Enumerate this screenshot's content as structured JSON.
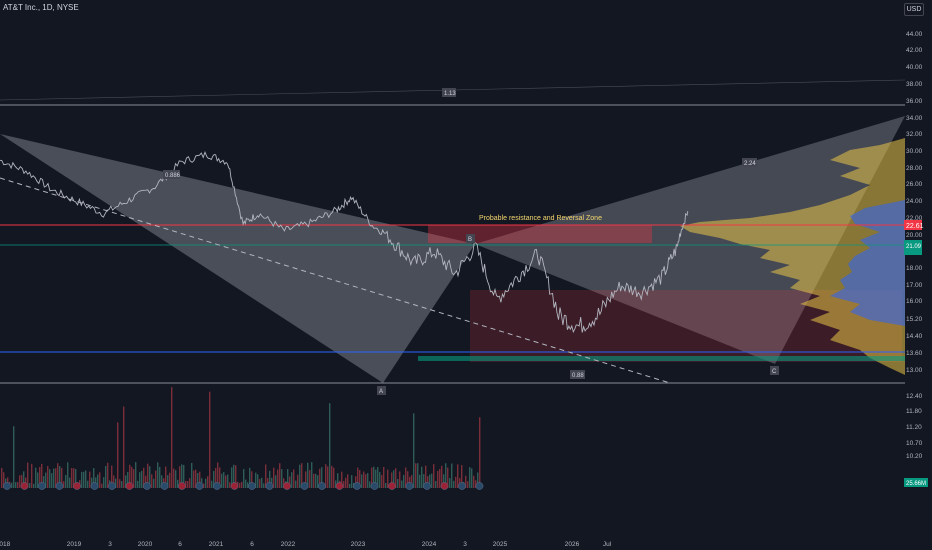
{
  "header": {
    "title": "AT&T Inc., 1D, NYSE",
    "currency": "USD"
  },
  "colors": {
    "background": "#131722",
    "price_line": "#b2b5be",
    "volume_down": "#7a2e3a",
    "volume_up": "#2e5d58",
    "pattern_fill": "#b2b5be",
    "resistance_zone": "#f23645",
    "resistance_line": "#f23645",
    "support_line": "#2962ff",
    "highlight_green": "#089981",
    "annotation_text": "#f5d76e"
  },
  "price_axis": {
    "ticks": [
      "44.00",
      "42.00",
      "40.00",
      "38.00",
      "36.00",
      "34.00",
      "32.00",
      "30.00",
      "28.00",
      "26.00",
      "24.00",
      "22.00",
      "20.00",
      "19.00",
      "18.00",
      "17.00",
      "16.00",
      "15.20",
      "14.40",
      "13.60",
      "13.00",
      "12.40",
      "11.80",
      "11.20",
      "10.70",
      "10.20"
    ],
    "current_price_label": "22.61",
    "green_label": "21.09",
    "volume_label": "25.66M"
  },
  "time_axis": {
    "ticks": [
      "2018",
      "2019",
      "3",
      "2020",
      "6",
      "2021",
      "6",
      "2022",
      "2023",
      "2024",
      "3",
      "2025",
      "2026",
      "Jul"
    ]
  },
  "annotations": {
    "zone_label": "Probable resistance and Reversal Zone",
    "point_a": "A",
    "point_b": "B",
    "point_c": "C",
    "ratio_top": "1.13",
    "ratio_xab": "0.886",
    "ratio_bcd": "0.88",
    "ratio_cd": "2.24"
  },
  "chart_data": {
    "type": "line",
    "title": "AT&T Inc., 1D, NYSE",
    "xlabel": "",
    "ylabel": "",
    "x": [
      2018.0,
      2018.25,
      2018.5,
      2018.75,
      2019.0,
      2019.25,
      2019.5,
      2019.75,
      2020.0,
      2020.2,
      2020.35,
      2020.5,
      2020.75,
      2021.0,
      2021.25,
      2021.4,
      2021.6,
      2021.8,
      2022.0,
      2022.2,
      2022.4,
      2022.6,
      2022.8,
      2023.0,
      2023.2,
      2023.4,
      2023.6,
      2023.8,
      2024.0,
      2024.2,
      2024.4,
      2024.55,
      2024.65
    ],
    "series": [
      {
        "values": [
          28.8,
          27.5,
          25.2,
          23.8,
          22.4,
          24.0,
          25.6,
          28.6,
          29.5,
          28.6,
          21.2,
          22.4,
          20.4,
          21.3,
          22.8,
          24.3,
          21.0,
          19.5,
          18.2,
          18.9,
          17.6,
          19.2,
          16.0,
          17.4,
          18.8,
          15.3,
          14.8,
          15.4,
          16.9,
          16.5,
          17.4,
          19.2,
          22.7
        ]
      }
    ],
    "ylim": [
      13.0,
      44.0
    ],
    "xlim": [
      2018.0,
      2026.75
    ],
    "grid": false,
    "legend": "none"
  }
}
